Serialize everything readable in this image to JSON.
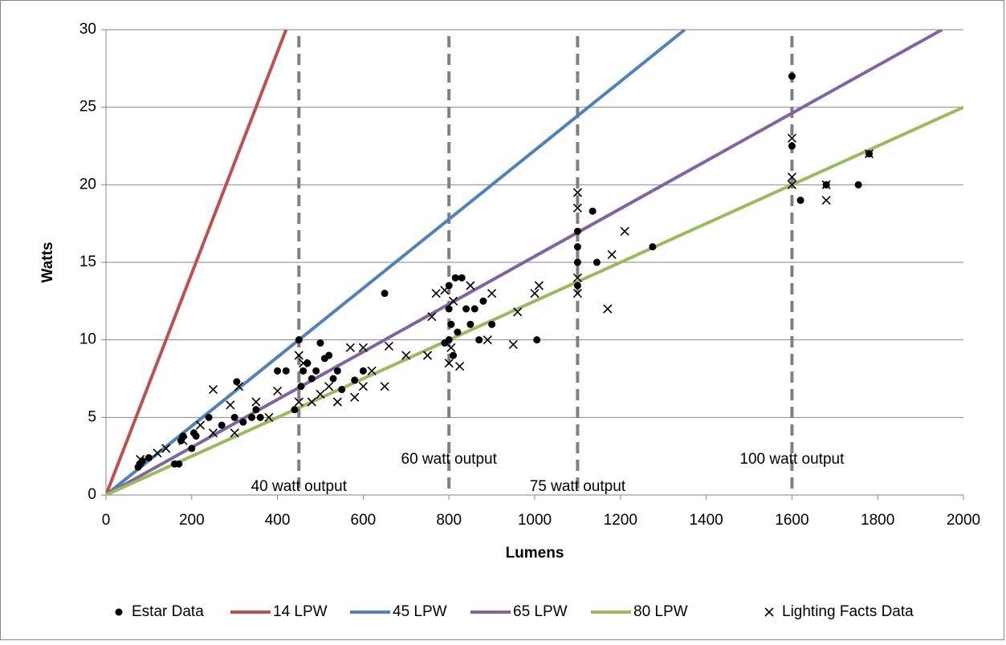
{
  "chart_data": {
    "type": "scatter",
    "xlabel": "Lumens",
    "ylabel": "Watts",
    "xlim": [
      0,
      2000
    ],
    "ylim": [
      0,
      30
    ],
    "xticks": [
      0,
      200,
      400,
      600,
      800,
      1000,
      1200,
      1400,
      1600,
      1800,
      2000
    ],
    "yticks": [
      0,
      5,
      10,
      15,
      20,
      25,
      30
    ],
    "grid": true,
    "legend": "bottom",
    "reference_lines": [
      {
        "x": 450,
        "label": "40 watt output"
      },
      {
        "x": 800,
        "label": "60 watt output"
      },
      {
        "x": 1100,
        "label": "75 watt output"
      },
      {
        "x": 1600,
        "label": "100 watt output"
      }
    ],
    "series": [
      {
        "name": "Estar Data",
        "color": "#000000",
        "marker": "circle",
        "x": [
          75,
          80,
          85,
          100,
          160,
          170,
          175,
          180,
          200,
          205,
          210,
          240,
          270,
          300,
          305,
          320,
          340,
          350,
          360,
          400,
          420,
          440,
          450,
          455,
          460,
          470,
          480,
          490,
          500,
          510,
          520,
          530,
          540,
          550,
          580,
          600,
          650,
          790,
          800,
          800,
          800,
          805,
          810,
          815,
          820,
          830,
          840,
          850,
          860,
          870,
          880,
          900,
          1005,
          1100,
          1100,
          1100,
          1100,
          1135,
          1145,
          1275,
          1600,
          1600,
          1620,
          1680,
          1755,
          1780
        ],
        "values": [
          1.8,
          2,
          2.2,
          2.4,
          2,
          2,
          3.5,
          3.8,
          3,
          4,
          3.8,
          5,
          4.5,
          5,
          7.3,
          4.7,
          5,
          5.5,
          5,
          8,
          8,
          5.5,
          10,
          7,
          8,
          8.5,
          7.5,
          8,
          9.8,
          8.8,
          9,
          7.5,
          8,
          6.8,
          7.4,
          8,
          13,
          9.8,
          10,
          12,
          13.5,
          11,
          9,
          14,
          10.5,
          14,
          12,
          11,
          12,
          10,
          12.5,
          11,
          10,
          15,
          16,
          13.5,
          17,
          18.3,
          15,
          16,
          27,
          22.5,
          19,
          20,
          20,
          22
        ]
      },
      {
        "name": "14 LPW",
        "color": "#c0504d",
        "marker": "line",
        "x": [
          0,
          420
        ],
        "values": [
          0,
          30
        ]
      },
      {
        "name": "45 LPW",
        "color": "#4f81bd",
        "marker": "line",
        "x": [
          0,
          1350
        ],
        "values": [
          0,
          30
        ]
      },
      {
        "name": "65 LPW",
        "color": "#8064a2",
        "marker": "line",
        "x": [
          0,
          1950
        ],
        "values": [
          0,
          30
        ]
      },
      {
        "name": "80 LPW",
        "color": "#9bbb59",
        "marker": "line",
        "x": [
          0,
          2000
        ],
        "values": [
          0,
          25
        ]
      },
      {
        "name": "Lighting Facts Data",
        "color": "#000000",
        "marker": "x",
        "x": [
          80,
          120,
          140,
          180,
          220,
          250,
          250,
          290,
          300,
          310,
          350,
          380,
          400,
          450,
          450,
          460,
          480,
          500,
          520,
          540,
          570,
          580,
          600,
          600,
          620,
          650,
          660,
          700,
          750,
          760,
          770,
          790,
          800,
          805,
          810,
          825,
          850,
          890,
          900,
          950,
          960,
          1000,
          1010,
          1100,
          1100,
          1100,
          1100,
          1170,
          1180,
          1210,
          1600,
          1600,
          1600,
          1680,
          1680,
          1780
        ],
        "values": [
          2.3,
          2.7,
          3,
          3.5,
          4.5,
          6.8,
          4,
          5.8,
          4,
          7,
          6,
          5,
          6.7,
          9,
          6,
          8.5,
          6,
          6.5,
          7,
          6,
          9.5,
          6.3,
          9.5,
          7,
          8,
          7,
          9.6,
          9,
          9,
          11.5,
          13,
          13.2,
          8.5,
          9.5,
          12.5,
          8.3,
          13.5,
          10,
          13,
          9.7,
          11.8,
          13,
          13.5,
          19.5,
          18.5,
          14,
          13,
          12,
          15.5,
          17,
          23,
          20.5,
          20,
          20,
          19,
          22
        ]
      }
    ]
  }
}
